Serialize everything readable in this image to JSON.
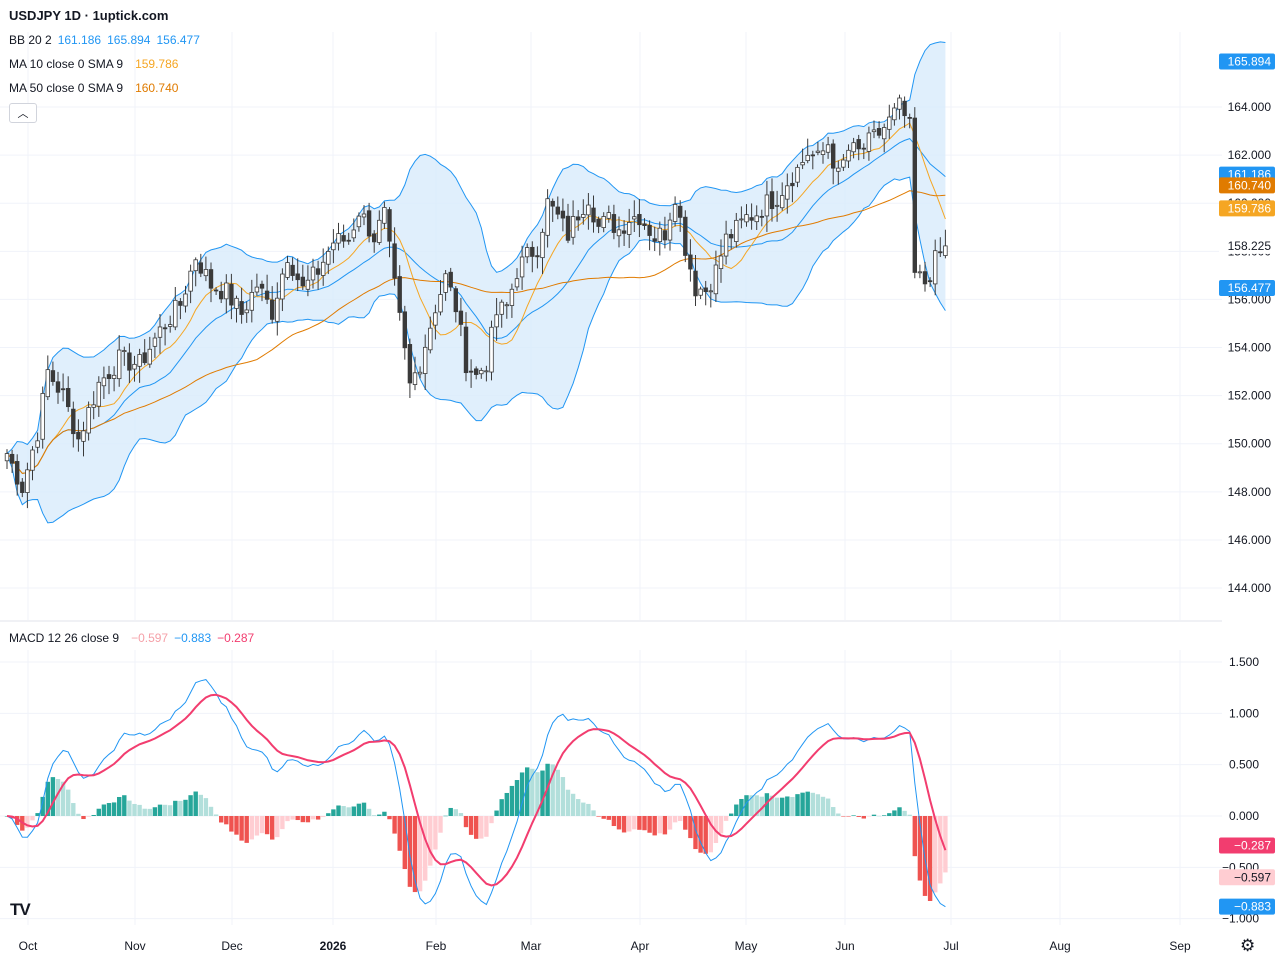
{
  "header": {
    "title": "USDJPY 1D · 1uptick.com"
  },
  "legend": {
    "bb": {
      "label": "BB 20 2",
      "v1": "161.186",
      "v2": "165.894",
      "v3": "156.477"
    },
    "ma10": {
      "label": "MA 10 close 0 SMA 9",
      "value": "159.786"
    },
    "ma50": {
      "label": "MA 50 close 0 SMA 9",
      "value": "160.740"
    },
    "macd": {
      "label": "MACD 12 26 close 9",
      "hist": "−0.597",
      "macd": "−0.883",
      "signal": "−0.287"
    }
  },
  "colors": {
    "up": "#ffffff",
    "down": "#3a3a3a",
    "bb": "#2196f3",
    "bb_fill": "#d8ebfb",
    "ma10": "#f5a623",
    "ma50": "#e07b00",
    "macd_line": "#2196f3",
    "signal_line": "#f23d6f",
    "hist_pos_strong": "#26a69a",
    "hist_pos_weak": "#b2dfdb",
    "hist_neg_strong": "#ef5350",
    "hist_neg_weak": "#ffcdd2"
  },
  "chart_data": [
    {
      "type": "candlestick",
      "title": "USDJPY 1D · 1uptick.com",
      "x_ticks": [
        "Oct",
        "Nov",
        "Dec",
        "2026",
        "Feb",
        "Mar",
        "Apr",
        "May",
        "Jun",
        "Jul",
        "Aug",
        "Sep"
      ],
      "y_ticks": [
        "164.000",
        "162.000",
        "160.000",
        "158.000",
        "156.000",
        "154.000",
        "152.000",
        "150.000",
        "148.000",
        "146.000",
        "144.000"
      ],
      "ylim": [
        143.0,
        167.0
      ],
      "price_anchors": [
        [
          0,
          149.6
        ],
        [
          3,
          148.2
        ],
        [
          6,
          150.5
        ],
        [
          8,
          153.0
        ],
        [
          11,
          152.0
        ],
        [
          14,
          150.2
        ],
        [
          18,
          152.5
        ],
        [
          22,
          153.5
        ],
        [
          26,
          153.3
        ],
        [
          30,
          154.7
        ],
        [
          34,
          155.8
        ],
        [
          37,
          157.8
        ],
        [
          40,
          156.6
        ],
        [
          43,
          156.3
        ],
        [
          46,
          155.4
        ],
        [
          49,
          156.6
        ],
        [
          52,
          155.5
        ],
        [
          55,
          157.9
        ],
        [
          58,
          156.4
        ],
        [
          61,
          157.2
        ],
        [
          64,
          158.4
        ],
        [
          67,
          158.5
        ],
        [
          69,
          159.7
        ],
        [
          72,
          158.6
        ],
        [
          74,
          159.5
        ],
        [
          76,
          156.5
        ],
        [
          79,
          152.4
        ],
        [
          81,
          153.4
        ],
        [
          84,
          155.7
        ],
        [
          86,
          156.9
        ],
        [
          88,
          155.7
        ],
        [
          90,
          153.4
        ],
        [
          92,
          152.8
        ],
        [
          94,
          153.4
        ],
        [
          96,
          155.4
        ],
        [
          98,
          155.7
        ],
        [
          100,
          157.2
        ],
        [
          102,
          157.8
        ],
        [
          104,
          158.2
        ],
        [
          106,
          160.0
        ],
        [
          108,
          159.4
        ],
        [
          110,
          158.7
        ],
        [
          112,
          159.6
        ],
        [
          114,
          160.3
        ],
        [
          116,
          159.0
        ],
        [
          118,
          159.3
        ],
        [
          120,
          158.9
        ],
        [
          122,
          159.4
        ],
        [
          124,
          159.5
        ],
        [
          127,
          158.6
        ],
        [
          129,
          158.8
        ],
        [
          131,
          160.4
        ],
        [
          133,
          158.2
        ],
        [
          135,
          156.5
        ],
        [
          137,
          156.4
        ],
        [
          139,
          157.2
        ],
        [
          141,
          158.5
        ],
        [
          143,
          158.9
        ],
        [
          145,
          159.4
        ],
        [
          147,
          159.6
        ],
        [
          149,
          160.0
        ],
        [
          151,
          160.3
        ],
        [
          153,
          160.9
        ],
        [
          155,
          161.4
        ],
        [
          157,
          162.1
        ],
        [
          159,
          161.8
        ],
        [
          161,
          162.5
        ],
        [
          163,
          161.1
        ],
        [
          165,
          162.2
        ],
        [
          167,
          162.1
        ],
        [
          169,
          162.5
        ],
        [
          171,
          162.9
        ],
        [
          173,
          163.4
        ],
        [
          175,
          164.0
        ],
        [
          176,
          163.6
        ],
        [
          177,
          163.1
        ],
        [
          178,
          157.0
        ],
        [
          180,
          156.7
        ],
        [
          182,
          157.6
        ],
        [
          184,
          158.2
        ]
      ],
      "last_close": 158.225,
      "series": [
        {
          "name": "BB 20 2",
          "last": [
            161.186,
            165.894,
            156.477
          ]
        },
        {
          "name": "MA 10 close 0 SMA 9",
          "last": 159.786
        },
        {
          "name": "MA 50 close 0 SMA 9",
          "last": 160.74
        }
      ],
      "price_labels": [
        {
          "text": "165.894",
          "value": 165.894,
          "color": "#2196f3"
        },
        {
          "text": "161.186",
          "value": 161.186,
          "color": "#2196f3"
        },
        {
          "text": "160.740",
          "value": 160.74,
          "color": "#e07b00"
        },
        {
          "text": "159.786",
          "value": 159.786,
          "color": "#f5a623"
        },
        {
          "text": "158.225",
          "value": 158.225,
          "color": "#ffffff"
        },
        {
          "text": "156.477",
          "value": 156.477,
          "color": "#2196f3"
        }
      ]
    },
    {
      "type": "line",
      "title": "MACD 12 26 close 9",
      "y_ticks": [
        "1.500",
        "1.000",
        "0.500",
        "0.000",
        "−0.500",
        "−1.000"
      ],
      "ylim": [
        -1.05,
        1.6
      ],
      "price_labels": [
        {
          "text": "−0.287",
          "value": -0.287,
          "color": "#f23d6f"
        },
        {
          "text": "−0.597",
          "value": -0.597,
          "color": "#ffcdd2"
        },
        {
          "text": "−0.883",
          "value": -0.883,
          "color": "#2196f3"
        }
      ]
    }
  ]
}
